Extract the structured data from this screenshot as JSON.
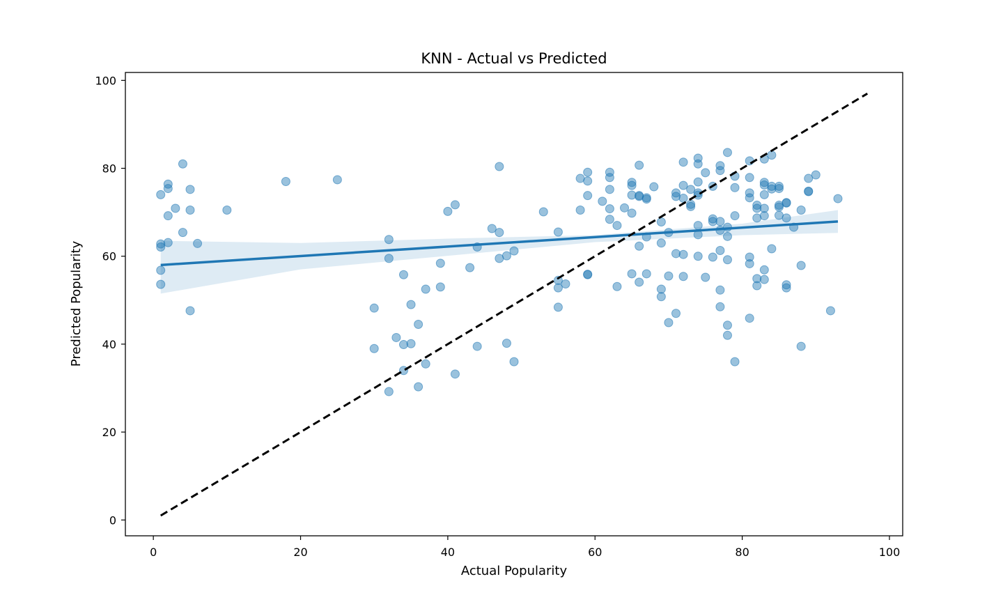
{
  "chart_data": {
    "type": "scatter",
    "title": "KNN - Actual vs Predicted",
    "xlabel": "Actual Popularity",
    "ylabel": "Predicted Popularity",
    "xlim": [
      -3.8,
      101.8
    ],
    "ylim": [
      -3.6,
      101.8
    ],
    "x_ticks": [
      "0",
      "20",
      "40",
      "60",
      "80",
      "100"
    ],
    "y_ticks": [
      "0",
      "20",
      "40",
      "60",
      "80",
      "100"
    ],
    "grid": false,
    "legend": "none",
    "colors": {
      "points": "#1f77b4",
      "regression": "#1f77b4",
      "ci_band": "#1f77b4",
      "ideal_line": "#000000"
    },
    "points": [
      [
        1,
        74
      ],
      [
        1,
        62.8
      ],
      [
        1,
        62.1
      ],
      [
        1,
        56.8
      ],
      [
        1,
        53.6
      ],
      [
        2,
        76.4
      ],
      [
        2,
        75.4
      ],
      [
        2,
        69.2
      ],
      [
        2,
        63.1
      ],
      [
        3,
        70.9
      ],
      [
        4,
        81
      ],
      [
        4,
        65.4
      ],
      [
        5,
        75.2
      ],
      [
        5,
        70.5
      ],
      [
        5,
        47.6
      ],
      [
        6,
        62.9
      ],
      [
        10,
        70.5
      ],
      [
        18,
        77
      ],
      [
        25,
        77.4
      ],
      [
        30,
        48.2
      ],
      [
        30,
        39
      ],
      [
        32,
        63.8
      ],
      [
        32,
        59.5
      ],
      [
        32,
        29.2
      ],
      [
        33,
        41.5
      ],
      [
        34,
        55.8
      ],
      [
        34,
        39.9
      ],
      [
        34,
        34
      ],
      [
        35,
        49
      ],
      [
        35,
        40.1
      ],
      [
        36,
        44.5
      ],
      [
        36,
        30.3
      ],
      [
        37,
        52.5
      ],
      [
        37,
        35.5
      ],
      [
        39,
        58.4
      ],
      [
        39,
        53
      ],
      [
        40,
        70.2
      ],
      [
        41,
        71.7
      ],
      [
        41,
        33.2
      ],
      [
        43,
        57.4
      ],
      [
        44,
        62.1
      ],
      [
        44,
        39.5
      ],
      [
        46,
        66.3
      ],
      [
        47,
        80.4
      ],
      [
        47,
        65.4
      ],
      [
        47,
        59.5
      ],
      [
        48,
        60.1
      ],
      [
        48,
        40.2
      ],
      [
        49,
        61.2
      ],
      [
        49,
        36
      ],
      [
        53,
        70.1
      ],
      [
        55,
        65.5
      ],
      [
        55,
        54.5
      ],
      [
        55,
        52.8
      ],
      [
        55,
        48.4
      ],
      [
        56,
        53.7
      ],
      [
        58,
        77.7
      ],
      [
        58,
        70.5
      ],
      [
        59,
        79.1
      ],
      [
        59,
        77.1
      ],
      [
        59,
        73.8
      ],
      [
        59,
        55.8
      ],
      [
        59,
        55.9
      ],
      [
        61,
        72.5
      ],
      [
        62,
        79.1
      ],
      [
        62,
        77.9
      ],
      [
        62,
        75.2
      ],
      [
        62,
        70.8
      ],
      [
        62,
        68.4
      ],
      [
        63,
        67
      ],
      [
        63,
        53.1
      ],
      [
        64,
        71
      ],
      [
        65,
        76.8
      ],
      [
        65,
        76.1
      ],
      [
        65,
        73.9
      ],
      [
        65,
        69.8
      ],
      [
        65,
        56
      ],
      [
        66,
        80.7
      ],
      [
        66,
        73.8
      ],
      [
        66,
        73.6
      ],
      [
        66,
        62.3
      ],
      [
        66,
        54.1
      ],
      [
        67,
        73.3
      ],
      [
        67,
        73
      ],
      [
        67,
        64.4
      ],
      [
        67,
        56
      ],
      [
        68,
        75.8
      ],
      [
        69,
        67.8
      ],
      [
        69,
        63
      ],
      [
        69,
        52.5
      ],
      [
        69,
        50.8
      ],
      [
        70,
        65.4
      ],
      [
        70,
        55.5
      ],
      [
        70,
        44.9
      ],
      [
        71,
        74.4
      ],
      [
        71,
        73.6
      ],
      [
        71,
        60.6
      ],
      [
        71,
        47
      ],
      [
        72,
        81.4
      ],
      [
        72,
        76.1
      ],
      [
        72,
        73.2
      ],
      [
        72,
        60.4
      ],
      [
        72,
        55.4
      ],
      [
        73,
        75.2
      ],
      [
        73,
        71.8
      ],
      [
        73,
        71.3
      ],
      [
        74,
        82.3
      ],
      [
        74,
        81
      ],
      [
        74,
        76.9
      ],
      [
        74,
        74.4
      ],
      [
        74,
        73.9
      ],
      [
        74,
        67
      ],
      [
        74,
        64.9
      ],
      [
        74,
        60
      ],
      [
        75,
        79
      ],
      [
        75,
        55.2
      ],
      [
        76,
        75.9
      ],
      [
        76,
        68.5
      ],
      [
        76,
        67.9
      ],
      [
        76,
        59.8
      ],
      [
        77,
        80.6
      ],
      [
        77,
        79.5
      ],
      [
        77,
        67.9
      ],
      [
        77,
        65.9
      ],
      [
        77,
        61.3
      ],
      [
        77,
        52.3
      ],
      [
        77,
        48.5
      ],
      [
        78,
        83.6
      ],
      [
        78,
        66.6
      ],
      [
        78,
        64.5
      ],
      [
        78,
        59.2
      ],
      [
        78,
        44.3
      ],
      [
        78,
        42
      ],
      [
        79,
        78.2
      ],
      [
        79,
        75.6
      ],
      [
        79,
        69.2
      ],
      [
        79,
        36
      ],
      [
        81,
        81.7
      ],
      [
        81,
        77.9
      ],
      [
        81,
        74.4
      ],
      [
        81,
        73.3
      ],
      [
        81,
        59.8
      ],
      [
        81,
        58.3
      ],
      [
        81,
        45.9
      ],
      [
        82,
        71.6
      ],
      [
        82,
        70.9
      ],
      [
        82,
        68.7
      ],
      [
        82,
        54.9
      ],
      [
        82,
        53.3
      ],
      [
        83,
        82.1
      ],
      [
        83,
        76.8
      ],
      [
        83,
        76.2
      ],
      [
        83,
        74
      ],
      [
        83,
        70.9
      ],
      [
        83,
        69.2
      ],
      [
        83,
        56.9
      ],
      [
        83,
        54.7
      ],
      [
        84,
        83
      ],
      [
        84,
        75.9
      ],
      [
        84,
        75.3
      ],
      [
        84,
        61.7
      ],
      [
        85,
        75.9
      ],
      [
        85,
        75.4
      ],
      [
        85,
        71.6
      ],
      [
        85,
        71.2
      ],
      [
        85,
        69.3
      ],
      [
        86,
        72.2
      ],
      [
        86,
        72.1
      ],
      [
        86,
        68.7
      ],
      [
        86,
        53.5
      ],
      [
        86,
        52.8
      ],
      [
        87,
        66.6
      ],
      [
        88,
        70.5
      ],
      [
        88,
        57.9
      ],
      [
        88,
        39.5
      ],
      [
        89,
        77.7
      ],
      [
        89,
        74.8
      ],
      [
        89,
        74.7
      ],
      [
        90,
        78.5
      ],
      [
        92,
        47.6
      ],
      [
        93,
        73.1
      ]
    ],
    "regression": {
      "x": [
        1,
        93
      ],
      "y": [
        58,
        67.9
      ],
      "ci_upper": [
        [
          1,
          63.5
        ],
        [
          20,
          63.0
        ],
        [
          40,
          64.0
        ],
        [
          60,
          64.8
        ],
        [
          80,
          67.4
        ],
        [
          93,
          70.5
        ]
      ],
      "ci_lower": [
        [
          1,
          51.5
        ],
        [
          20,
          57.0
        ],
        [
          40,
          60.1
        ],
        [
          60,
          63.2
        ],
        [
          80,
          64.8
        ],
        [
          93,
          65.3
        ]
      ]
    },
    "ideal_line": {
      "x": [
        1,
        97
      ],
      "y": [
        1,
        97
      ]
    }
  }
}
